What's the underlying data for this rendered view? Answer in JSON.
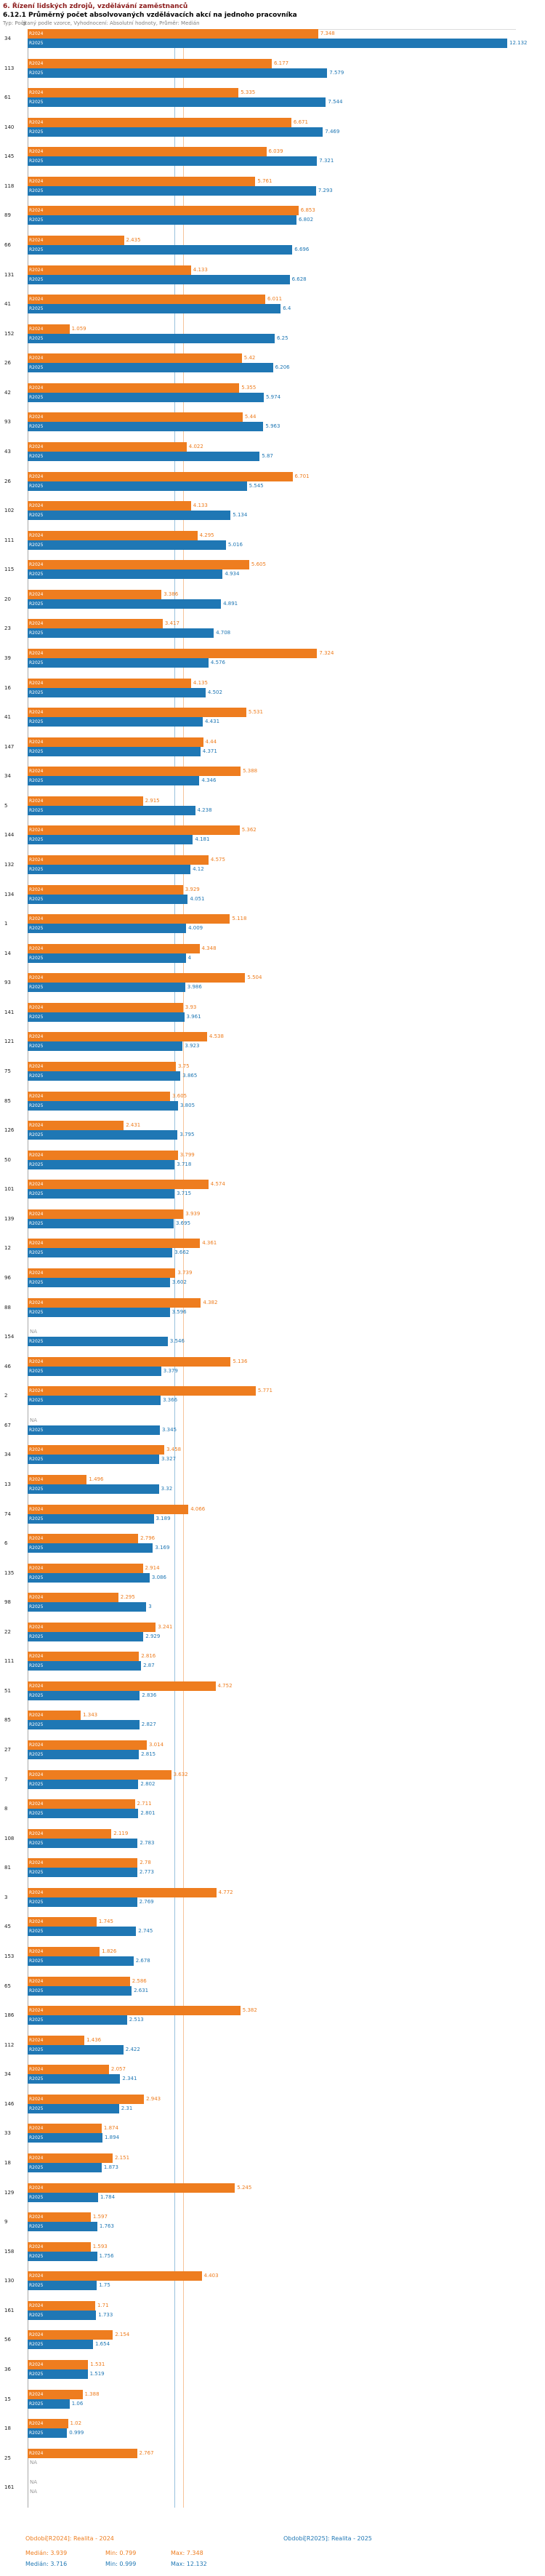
{
  "header": {
    "title": "6. Řízení lidských zdrojů, vzdělávání zaměstnanců",
    "subtitle": "6.12.1 Průměrný počet absolvovaných vzdělávacích akcí na jednoho pracovníka",
    "meta": "Typ: Počítaný podle vzorce, Vyhodnocení: Absolutní hodnoty, Průměr: Medián"
  },
  "chart_data": {
    "type": "bar",
    "orientation": "horizontal",
    "title": "6.12.1 Průměrný počet absolvovaných vzdělávacích akcí na jednoho pracovníka",
    "xlabel": "",
    "ylabel": "",
    "xlim": [
      0,
      12.5
    ],
    "axis": {
      "origin_label": "0"
    },
    "na_label": "NA",
    "series": [
      {
        "key": "r2024",
        "name": "R2024",
        "color": "#ee7d1f",
        "legend": "Období[R2024]: Realita - 2024",
        "median": 3.939,
        "stats": {
          "median": "Medián: 3.939",
          "min": "Min: 0.799",
          "max": "Max: 7.348"
        }
      },
      {
        "key": "r2025",
        "name": "R2025",
        "color": "#1f77b4",
        "legend": "Období[R2025]: Realita - 2025",
        "median": 3.716,
        "stats": {
          "median": "Medián: 3.716",
          "min": "Min: 0.999",
          "max": "Max: 12.132"
        }
      }
    ],
    "rows": [
      {
        "id": "34",
        "r2024": 7.348,
        "r2025": 12.132
      },
      {
        "id": "113",
        "r2024": 6.177,
        "r2025": 7.579
      },
      {
        "id": "61",
        "r2024": 5.335,
        "r2025": 7.544
      },
      {
        "id": "140",
        "r2024": 6.671,
        "r2025": 7.469
      },
      {
        "id": "145",
        "r2024": 6.039,
        "r2025": 7.321
      },
      {
        "id": "118",
        "r2024": 5.761,
        "r2025": 7.293
      },
      {
        "id": "89",
        "r2024": 6.853,
        "r2025": 6.802
      },
      {
        "id": "66",
        "r2024": 2.435,
        "r2025": 6.696
      },
      {
        "id": "131",
        "r2024": 4.133,
        "r2025": 6.628
      },
      {
        "id": "41",
        "r2024": 6.011,
        "r2025": 6.4
      },
      {
        "id": "152",
        "r2024": 1.059,
        "r2025": 6.25
      },
      {
        "id": "26",
        "r2024": 5.42,
        "r2025": 6.206
      },
      {
        "id": "42",
        "r2024": 5.355,
        "r2025": 5.974
      },
      {
        "id": "93",
        "r2024": 5.44,
        "r2025": 5.963
      },
      {
        "id": "43",
        "r2024": 4.022,
        "r2025": 5.87
      },
      {
        "id": "26",
        "r2024": 6.701,
        "r2025": 5.545
      },
      {
        "id": "102",
        "r2024": 4.133,
        "r2025": 5.134
      },
      {
        "id": "111",
        "r2024": 4.295,
        "r2025": 5.016
      },
      {
        "id": "115",
        "r2024": 5.605,
        "r2025": 4.934
      },
      {
        "id": "20",
        "r2024": 3.386,
        "r2025": 4.891
      },
      {
        "id": "23",
        "r2024": 3.417,
        "r2025": 4.708
      },
      {
        "id": "39",
        "r2024": 7.324,
        "r2025": 4.576
      },
      {
        "id": "16",
        "r2024": 4.135,
        "r2025": 4.502
      },
      {
        "id": "41",
        "r2024": 5.531,
        "r2025": 4.431
      },
      {
        "id": "147",
        "r2024": 4.44,
        "r2025": 4.371
      },
      {
        "id": "34",
        "r2024": 5.388,
        "r2025": 4.346
      },
      {
        "id": "5",
        "r2024": 2.915,
        "r2025": 4.238
      },
      {
        "id": "144",
        "r2024": 5.362,
        "r2025": 4.181
      },
      {
        "id": "132",
        "r2024": 4.575,
        "r2025": 4.12
      },
      {
        "id": "134",
        "r2024": 3.929,
        "r2025": 4.051
      },
      {
        "id": "1",
        "r2024": 5.118,
        "r2025": 4.009
      },
      {
        "id": "14",
        "r2024": 4.348,
        "r2025": 4
      },
      {
        "id": "93",
        "r2024": 5.504,
        "r2025": 3.986
      },
      {
        "id": "141",
        "r2024": 3.93,
        "r2025": 3.961
      },
      {
        "id": "121",
        "r2024": 4.538,
        "r2025": 3.923
      },
      {
        "id": "75",
        "r2024": 3.75,
        "r2025": 3.865
      },
      {
        "id": "85",
        "r2024": 3.605,
        "r2025": 3.805
      },
      {
        "id": "126",
        "r2024": 2.431,
        "r2025": 3.795
      },
      {
        "id": "50",
        "r2024": 3.799,
        "r2025": 3.718
      },
      {
        "id": "101",
        "r2024": 4.574,
        "r2025": 3.715
      },
      {
        "id": "139",
        "r2024": 3.939,
        "r2025": 3.695
      },
      {
        "id": "12",
        "r2024": 4.361,
        "r2025": 3.662
      },
      {
        "id": "96",
        "r2024": 3.739,
        "r2025": 3.602
      },
      {
        "id": "88",
        "r2024": 4.382,
        "r2025": 3.596
      },
      {
        "id": "154",
        "r2024": null,
        "r2025": 3.546
      },
      {
        "id": "46",
        "r2024": 5.136,
        "r2025": 3.379
      },
      {
        "id": "2",
        "r2024": 5.771,
        "r2025": 3.366
      },
      {
        "id": "67",
        "r2024": null,
        "r2025": 3.345
      },
      {
        "id": "34",
        "r2024": 3.458,
        "r2025": 3.327
      },
      {
        "id": "13",
        "r2024": 1.496,
        "r2025": 3.32
      },
      {
        "id": "74",
        "r2024": 4.066,
        "r2025": 3.189
      },
      {
        "id": "6",
        "r2024": 2.796,
        "r2025": 3.169
      },
      {
        "id": "135",
        "r2024": 2.914,
        "r2025": 3.086
      },
      {
        "id": "98",
        "r2024": 2.295,
        "r2025": 3
      },
      {
        "id": "22",
        "r2024": 3.241,
        "r2025": 2.929
      },
      {
        "id": "111",
        "r2024": 2.816,
        "r2025": 2.87
      },
      {
        "id": "51",
        "r2024": 4.752,
        "r2025": 2.836
      },
      {
        "id": "85",
        "r2024": 1.343,
        "r2025": 2.827
      },
      {
        "id": "27",
        "r2024": 3.014,
        "r2025": 2.815
      },
      {
        "id": "7",
        "r2024": 3.632,
        "r2025": 2.802
      },
      {
        "id": "8",
        "r2024": 2.711,
        "r2025": 2.801
      },
      {
        "id": "108",
        "r2024": 2.119,
        "r2025": 2.783
      },
      {
        "id": "81",
        "r2024": 2.78,
        "r2025": 2.773
      },
      {
        "id": "3",
        "r2024": 4.772,
        "r2025": 2.769
      },
      {
        "id": "45",
        "r2024": 1.745,
        "r2025": 2.745
      },
      {
        "id": "153",
        "r2024": 1.826,
        "r2025": 2.678
      },
      {
        "id": "65",
        "r2024": 2.586,
        "r2025": 2.631
      },
      {
        "id": "186",
        "r2024": 5.382,
        "r2025": 2.513
      },
      {
        "id": "112",
        "r2024": 1.436,
        "r2025": 2.422
      },
      {
        "id": "34",
        "r2024": 2.057,
        "r2025": 2.341
      },
      {
        "id": "146",
        "r2024": 2.943,
        "r2025": 2.31
      },
      {
        "id": "33",
        "r2024": 1.874,
        "r2025": 1.894
      },
      {
        "id": "18",
        "r2024": 2.151,
        "r2025": 1.873
      },
      {
        "id": "129",
        "r2024": 5.245,
        "r2025": 1.784
      },
      {
        "id": "9",
        "r2024": 1.597,
        "r2025": 1.763
      },
      {
        "id": "158",
        "r2024": 1.593,
        "r2025": 1.756
      },
      {
        "id": "130",
        "r2024": 4.403,
        "r2025": 1.75
      },
      {
        "id": "161",
        "r2024": 1.71,
        "r2025": 1.733
      },
      {
        "id": "56",
        "r2024": 2.154,
        "r2025": 1.654
      },
      {
        "id": "36",
        "r2024": 1.531,
        "r2025": 1.519
      },
      {
        "id": "15",
        "r2024": 1.388,
        "r2025": 1.06
      },
      {
        "id": "18",
        "r2024": 1.02,
        "r2025": 0.999
      },
      {
        "id": "25",
        "r2024": 2.767,
        "r2025": null
      },
      {
        "id": "161",
        "r2024": null,
        "r2025": null
      }
    ]
  }
}
